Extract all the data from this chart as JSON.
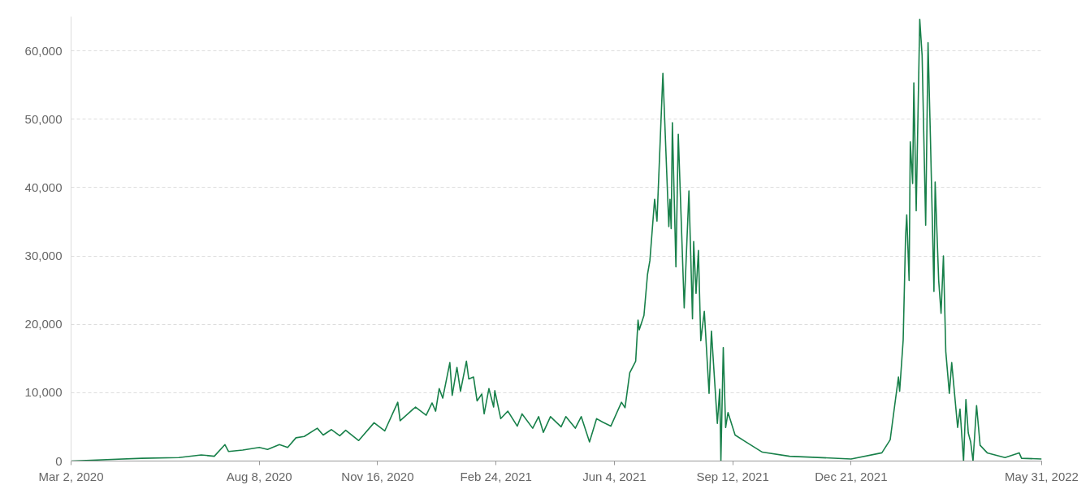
{
  "chart_data": {
    "type": "line",
    "grid": "y",
    "line_style": "solid",
    "xlim": [
      "2020-03-02",
      "2022-05-31"
    ],
    "xticks": [
      {
        "value": "2020-03-02",
        "label": "Mar 2, 2020"
      },
      {
        "value": "2020-08-08",
        "label": "Aug 8, 2020"
      },
      {
        "value": "2020-11-16",
        "label": "Nov 16, 2020"
      },
      {
        "value": "2021-02-24",
        "label": "Feb 24, 2021"
      },
      {
        "value": "2021-06-04",
        "label": "Jun 4, 2021"
      },
      {
        "value": "2021-09-12",
        "label": "Sep 12, 2021"
      },
      {
        "value": "2021-12-21",
        "label": "Dec 21, 2021"
      },
      {
        "value": "2022-05-31",
        "label": "May 31, 2022"
      }
    ],
    "ylim": [
      0,
      65000
    ],
    "yticks": [
      0,
      {
        "value": 10000,
        "label": "10,000"
      },
      {
        "value": 20000,
        "label": "20,000"
      },
      {
        "value": 30000,
        "label": "30,000"
      },
      {
        "value": 40000,
        "label": "40,000"
      },
      {
        "value": 50000,
        "label": "50,000"
      },
      {
        "value": 60000,
        "label": "60,000"
      }
    ],
    "x": [
      "2020-03-02",
      "2020-04-01",
      "2020-05-01",
      "2020-06-01",
      "2020-06-20",
      "2020-07-01",
      "2020-07-10",
      "2020-07-13",
      "2020-07-25",
      "2020-08-08",
      "2020-08-15",
      "2020-08-25",
      "2020-09-01",
      "2020-09-08",
      "2020-09-15",
      "2020-09-26",
      "2020-10-01",
      "2020-10-08",
      "2020-10-15",
      "2020-10-20",
      "2020-10-31",
      "2020-11-13",
      "2020-11-22",
      "2020-12-03",
      "2020-12-05",
      "2020-12-18",
      "2020-12-27",
      "2021-01-01",
      "2021-01-04",
      "2021-01-07",
      "2021-01-10",
      "2021-01-16",
      "2021-01-18",
      "2021-01-22",
      "2021-01-25",
      "2021-01-30",
      "2021-02-01",
      "2021-02-05",
      "2021-02-08",
      "2021-02-12",
      "2021-02-14",
      "2021-02-18",
      "2021-02-22",
      "2021-02-23",
      "2021-02-28",
      "2021-03-06",
      "2021-03-14",
      "2021-03-18",
      "2021-03-27",
      "2021-04-01",
      "2021-04-05",
      "2021-04-11",
      "2021-04-20",
      "2021-04-24",
      "2021-05-02",
      "2021-05-07",
      "2021-05-14",
      "2021-05-20",
      "2021-05-25",
      "2021-06-01",
      "2021-06-10",
      "2021-06-13",
      "2021-06-17",
      "2021-06-22",
      "2021-06-24",
      "2021-06-25",
      "2021-06-29",
      "2021-07-02",
      "2021-07-04",
      "2021-07-08",
      "2021-07-10",
      "2021-07-15",
      "2021-07-20",
      "2021-07-21",
      "2021-07-22",
      "2021-07-23",
      "2021-07-26",
      "2021-07-28",
      "2021-08-02",
      "2021-08-06",
      "2021-08-09",
      "2021-08-10",
      "2021-08-12",
      "2021-08-14",
      "2021-08-16",
      "2021-08-19",
      "2021-08-23",
      "2021-08-25",
      "2021-08-30",
      "2021-09-01",
      "2021-09-02",
      "2021-09-04",
      "2021-09-06",
      "2021-09-08",
      "2021-09-14",
      "2021-09-23",
      "2021-10-07",
      "2021-10-30",
      "2021-12-21",
      "2022-01-16",
      "2022-01-23",
      "2022-01-30",
      "2022-01-31",
      "2022-02-03",
      "2022-02-05",
      "2022-02-06",
      "2022-02-08",
      "2022-02-09",
      "2022-02-11",
      "2022-02-12",
      "2022-02-14",
      "2022-02-17",
      "2022-02-19",
      "2022-02-22",
      "2022-02-24",
      "2022-02-26",
      "2022-03-01",
      "2022-03-02",
      "2022-03-05",
      "2022-03-07",
      "2022-03-09",
      "2022-03-11",
      "2022-03-14",
      "2022-03-16",
      "2022-03-21",
      "2022-03-23",
      "2022-03-26",
      "2022-03-28",
      "2022-03-30",
      "2022-04-01",
      "2022-04-03",
      "2022-04-06",
      "2022-04-09",
      "2022-04-15",
      "2022-04-30",
      "2022-05-12",
      "2022-05-14",
      "2022-05-31"
    ],
    "series": [
      {
        "color": "#18804a",
        "values": [
          0,
          200,
          400,
          500,
          900,
          700,
          2400,
          1400,
          1600,
          2000,
          1700,
          2400,
          2000,
          3400,
          3600,
          4800,
          3800,
          4600,
          3700,
          4500,
          3000,
          5600,
          4400,
          8600,
          5900,
          7900,
          6700,
          8500,
          7300,
          10600,
          9200,
          14400,
          9600,
          13700,
          10200,
          14600,
          12000,
          12300,
          8800,
          9800,
          6900,
          10600,
          7900,
          10300,
          6200,
          7300,
          5100,
          6900,
          4800,
          6500,
          4200,
          6500,
          5000,
          6500,
          4800,
          6500,
          2800,
          6200,
          5700,
          5100,
          8600,
          7800,
          12900,
          14600,
          20600,
          19200,
          21300,
          27300,
          29300,
          38300,
          35100,
          56700,
          34300,
          38300,
          34000,
          49500,
          28400,
          47800,
          22400,
          39500,
          20800,
          32100,
          24500,
          30800,
          17600,
          21900,
          9900,
          19000,
          5500,
          10500,
          0,
          16600,
          4900,
          7100,
          3800,
          2800,
          1300,
          700,
          300,
          1200,
          3100,
          12300,
          10200,
          17700,
          32700,
          36000,
          26400,
          46700,
          40600,
          55300,
          36600,
          64600,
          59300,
          34500,
          61200,
          47400,
          24800,
          40800,
          26400,
          21600,
          30000,
          16000,
          9900,
          14400,
          4900,
          7600,
          0,
          9000,
          4100,
          2800,
          0,
          8100,
          2300,
          1200,
          500,
          1200,
          400,
          300
        ]
      }
    ]
  }
}
